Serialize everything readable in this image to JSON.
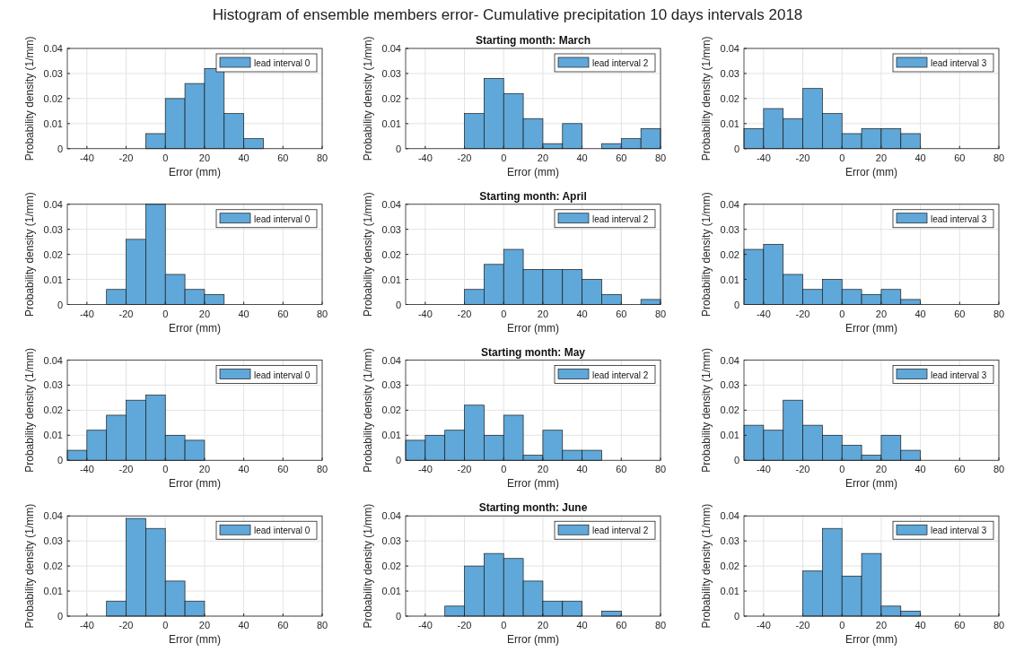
{
  "chart_data": [
    {
      "type": "other",
      "title": "Histogram of ensemble members error- Cumulative precipitation 10 days intervals 2018"
    },
    {
      "type": "histogram",
      "xlabel": "Error (mm)",
      "ylabel": "Probability density (1/mm)",
      "bins": [
        -10,
        0,
        10,
        20,
        30,
        40,
        50
      ],
      "series": [
        {
          "name": "lead interval 0",
          "color": "#5fa8d9",
          "values": [
            0.006,
            0.02,
            0.026,
            0.032,
            0.014,
            0.004
          ]
        }
      ],
      "xlim": [
        -50,
        80
      ],
      "xticks": [
        -40,
        -20,
        0,
        20,
        40,
        60,
        80
      ],
      "ylim": [
        0,
        0.04
      ],
      "yticks": [
        0,
        0.01,
        0.02,
        0.03,
        0.04
      ],
      "grid": true,
      "legend": "top right"
    },
    {
      "type": "histogram",
      "title": "Starting month: March",
      "xlabel": "Error (mm)",
      "ylabel": "Probability density (1/mm)",
      "bins": [
        -20,
        -10,
        0,
        10,
        20,
        30,
        40,
        50,
        60,
        70,
        80
      ],
      "series": [
        {
          "name": "lead interval 2",
          "color": "#5fa8d9",
          "values": [
            0.014,
            0.028,
            0.022,
            0.012,
            0.002,
            0.01,
            0,
            0.002,
            0.004,
            0.008
          ]
        }
      ],
      "xlim": [
        -50,
        80
      ],
      "xticks": [
        -40,
        -20,
        0,
        20,
        40,
        60,
        80
      ],
      "ylim": [
        0,
        0.04
      ],
      "yticks": [
        0,
        0.01,
        0.02,
        0.03,
        0.04
      ],
      "grid": true,
      "legend": "top right"
    },
    {
      "type": "histogram",
      "xlabel": "Error (mm)",
      "ylabel": "Probability density (1/mm)",
      "bins": [
        -50,
        -40,
        -30,
        -20,
        -10,
        0,
        10,
        20,
        30,
        40
      ],
      "series": [
        {
          "name": "lead interval 3",
          "color": "#5fa8d9",
          "values": [
            0.008,
            0.016,
            0.012,
            0.024,
            0.014,
            0.006,
            0.008,
            0.008,
            0.006
          ]
        }
      ],
      "xlim": [
        -50,
        80
      ],
      "xticks": [
        -40,
        -20,
        0,
        20,
        40,
        60,
        80
      ],
      "ylim": [
        0,
        0.04
      ],
      "yticks": [
        0,
        0.01,
        0.02,
        0.03,
        0.04
      ],
      "grid": true,
      "legend": "top right"
    },
    {
      "type": "histogram",
      "xlabel": "Error (mm)",
      "ylabel": "Probability density (1/mm)",
      "bins": [
        -30,
        -20,
        -10,
        0,
        10,
        20,
        30
      ],
      "series": [
        {
          "name": "lead interval 0",
          "color": "#5fa8d9",
          "values": [
            0.006,
            0.026,
            0.04,
            0.012,
            0.006,
            0.004
          ]
        }
      ],
      "xlim": [
        -50,
        80
      ],
      "xticks": [
        -40,
        -20,
        0,
        20,
        40,
        60,
        80
      ],
      "ylim": [
        0,
        0.04
      ],
      "yticks": [
        0,
        0.01,
        0.02,
        0.03,
        0.04
      ],
      "grid": true,
      "legend": "top right"
    },
    {
      "type": "histogram",
      "title": "Starting month: April",
      "xlabel": "Error (mm)",
      "ylabel": "Probability density (1/mm)",
      "bins": [
        -20,
        -10,
        0,
        10,
        20,
        30,
        40,
        50,
        60,
        70,
        80
      ],
      "series": [
        {
          "name": "lead interval 2",
          "color": "#5fa8d9",
          "values": [
            0.006,
            0.016,
            0.022,
            0.014,
            0.014,
            0.014,
            0.01,
            0.004,
            0,
            0.002
          ]
        }
      ],
      "xlim": [
        -50,
        80
      ],
      "xticks": [
        -40,
        -20,
        0,
        20,
        40,
        60,
        80
      ],
      "ylim": [
        0,
        0.04
      ],
      "yticks": [
        0,
        0.01,
        0.02,
        0.03,
        0.04
      ],
      "grid": true,
      "legend": "top right"
    },
    {
      "type": "histogram",
      "xlabel": "Error (mm)",
      "ylabel": "Probability density (1/mm)",
      "bins": [
        -50,
        -40,
        -30,
        -20,
        -10,
        0,
        10,
        20,
        30,
        40
      ],
      "series": [
        {
          "name": "lead interval 3",
          "color": "#5fa8d9",
          "values": [
            0.022,
            0.024,
            0.012,
            0.006,
            0.01,
            0.006,
            0.004,
            0.006,
            0.002
          ]
        }
      ],
      "xlim": [
        -50,
        80
      ],
      "xticks": [
        -40,
        -20,
        0,
        20,
        40,
        60,
        80
      ],
      "ylim": [
        0,
        0.04
      ],
      "yticks": [
        0,
        0.01,
        0.02,
        0.03,
        0.04
      ],
      "grid": true,
      "legend": "top right"
    },
    {
      "type": "histogram",
      "xlabel": "Error (mm)",
      "ylabel": "Probability density (1/mm)",
      "bins": [
        -50,
        -40,
        -30,
        -20,
        -10,
        0,
        10,
        20
      ],
      "series": [
        {
          "name": "lead interval 0",
          "color": "#5fa8d9",
          "values": [
            0.004,
            0.012,
            0.018,
            0.024,
            0.026,
            0.01,
            0.008
          ]
        }
      ],
      "xlim": [
        -50,
        80
      ],
      "xticks": [
        -40,
        -20,
        0,
        20,
        40,
        60,
        80
      ],
      "ylim": [
        0,
        0.04
      ],
      "yticks": [
        0,
        0.01,
        0.02,
        0.03,
        0.04
      ],
      "grid": true,
      "legend": "top right"
    },
    {
      "type": "histogram",
      "title": "Starting month: May",
      "xlabel": "Error (mm)",
      "ylabel": "Probability density (1/mm)",
      "bins": [
        -50,
        -40,
        -30,
        -20,
        -10,
        0,
        10,
        20,
        30,
        40,
        50
      ],
      "series": [
        {
          "name": "lead interval 2",
          "color": "#5fa8d9",
          "values": [
            0.008,
            0.01,
            0.012,
            0.022,
            0.01,
            0.018,
            0.002,
            0.012,
            0.004,
            0.004
          ]
        }
      ],
      "xlim": [
        -50,
        80
      ],
      "xticks": [
        -40,
        -20,
        0,
        20,
        40,
        60,
        80
      ],
      "ylim": [
        0,
        0.04
      ],
      "yticks": [
        0,
        0.01,
        0.02,
        0.03,
        0.04
      ],
      "grid": true,
      "legend": "top right"
    },
    {
      "type": "histogram",
      "xlabel": "Error (mm)",
      "ylabel": "Probability density (1/mm)",
      "bins": [
        -50,
        -40,
        -30,
        -20,
        -10,
        0,
        10,
        20,
        30,
        40
      ],
      "series": [
        {
          "name": "lead interval 3",
          "color": "#5fa8d9",
          "values": [
            0.014,
            0.012,
            0.024,
            0.014,
            0.01,
            0.006,
            0.002,
            0.01,
            0.004
          ]
        }
      ],
      "xlim": [
        -50,
        80
      ],
      "xticks": [
        -40,
        -20,
        0,
        20,
        40,
        60,
        80
      ],
      "ylim": [
        0,
        0.04
      ],
      "yticks": [
        0,
        0.01,
        0.02,
        0.03,
        0.04
      ],
      "grid": true,
      "legend": "top right"
    },
    {
      "type": "histogram",
      "xlabel": "Error (mm)",
      "ylabel": "Probability density (1/mm)",
      "bins": [
        -30,
        -20,
        -10,
        0,
        10,
        20
      ],
      "series": [
        {
          "name": "lead interval 0",
          "color": "#5fa8d9",
          "values": [
            0.006,
            0.039,
            0.035,
            0.014,
            0.006
          ]
        }
      ],
      "xlim": [
        -50,
        80
      ],
      "xticks": [
        -40,
        -20,
        0,
        20,
        40,
        60,
        80
      ],
      "ylim": [
        0,
        0.04
      ],
      "yticks": [
        0,
        0.01,
        0.02,
        0.03,
        0.04
      ],
      "grid": true,
      "legend": "top right"
    },
    {
      "type": "histogram",
      "title": "Starting month: June",
      "xlabel": "Error (mm)",
      "ylabel": "Probability density (1/mm)",
      "bins": [
        -30,
        -20,
        -10,
        0,
        10,
        20,
        30,
        40,
        50,
        60
      ],
      "series": [
        {
          "name": "lead interval 2",
          "color": "#5fa8d9",
          "values": [
            0.004,
            0.02,
            0.025,
            0.023,
            0.014,
            0.006,
            0.006,
            0,
            0.002
          ]
        }
      ],
      "xlim": [
        -50,
        80
      ],
      "xticks": [
        -40,
        -20,
        0,
        20,
        40,
        60,
        80
      ],
      "ylim": [
        0,
        0.04
      ],
      "yticks": [
        0,
        0.01,
        0.02,
        0.03,
        0.04
      ],
      "grid": true,
      "legend": "top right"
    },
    {
      "type": "histogram",
      "xlabel": "Error (mm)",
      "ylabel": "Probability density (1/mm)",
      "bins": [
        -20,
        -10,
        0,
        10,
        20,
        30,
        40
      ],
      "series": [
        {
          "name": "lead interval 3",
          "color": "#5fa8d9",
          "values": [
            0.018,
            0.035,
            0.016,
            0.025,
            0.004,
            0.002
          ]
        }
      ],
      "xlim": [
        -50,
        80
      ],
      "xticks": [
        -40,
        -20,
        0,
        20,
        40,
        60,
        80
      ],
      "ylim": [
        0,
        0.04
      ],
      "yticks": [
        0,
        0.01,
        0.02,
        0.03,
        0.04
      ],
      "grid": true,
      "legend": "top right"
    }
  ]
}
